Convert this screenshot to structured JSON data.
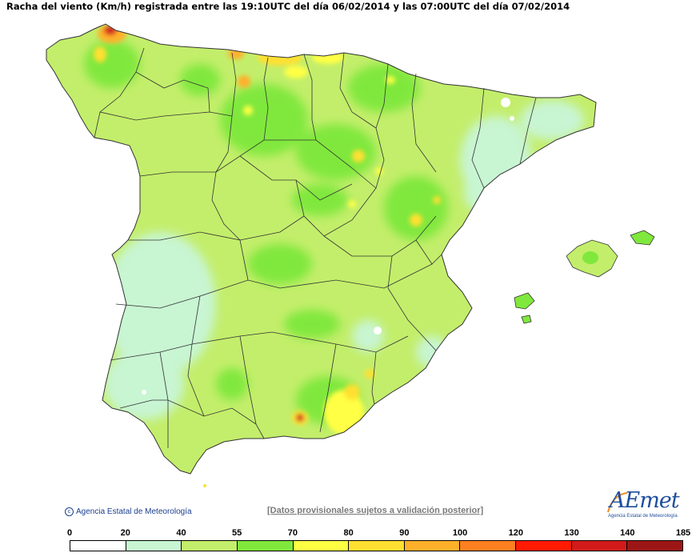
{
  "title": "Racha del viento (Km/h) registrada entre las 19:10UTC del día 06/02/2014 y las 07:00UTC del día 07/02/2014",
  "copyright": "Agencia Estatal de Meteorología",
  "disclaimer": "[Datos provisionales sujetos a validación posterior]",
  "logo": {
    "word": "AEmet",
    "subtitle": "Agencia Estatal de Meteorología"
  },
  "legend": {
    "breaks": [
      "0",
      "20",
      "40",
      "55",
      "70",
      "80",
      "90",
      "100",
      "120",
      "130",
      "140",
      "185"
    ],
    "colors": [
      "#ffffff",
      "#c8f5d2",
      "#c3ee6b",
      "#80e83c",
      "#ffff44",
      "#ffe030",
      "#ffb02a",
      "#ff8020",
      "#ff1a00",
      "#d21a1a",
      "#9c1616"
    ]
  },
  "map_colors": {
    "low": "#c8f5d2",
    "mid": "#c3ee6b",
    "high": "#80e83c",
    "yellow": "#ffff44",
    "orange": "#ffb02a",
    "red": "#d02020",
    "border": "#333333"
  }
}
